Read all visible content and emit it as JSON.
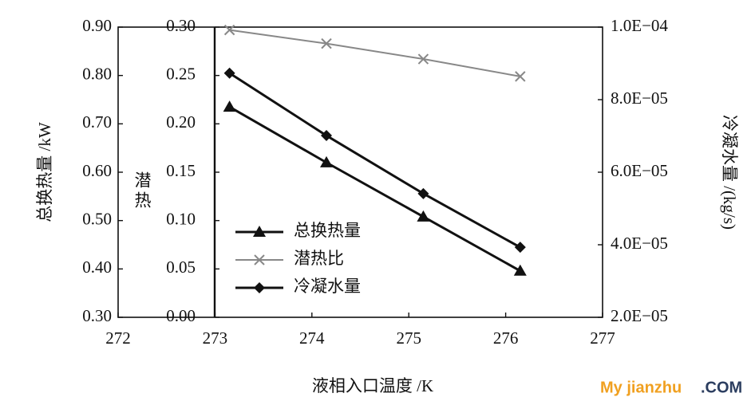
{
  "chart_data": {
    "type": "line",
    "x_label": "液相入口温度 /K",
    "y_label": "总换热量 /kW",
    "y2_label": "冷凝水量 /(kg/s)",
    "y3_label": "潜热",
    "x": [
      273.15,
      274.15,
      275.15,
      276.15
    ],
    "xlim": [
      272,
      277
    ],
    "xticks": [
      272,
      273,
      274,
      275,
      276,
      277
    ],
    "ylim": [
      0.3,
      0.9
    ],
    "yticks": [
      {
        "value": 0.3,
        "label": "0.30"
      },
      {
        "value": 0.4,
        "label": "0.40"
      },
      {
        "value": 0.5,
        "label": "0.50"
      },
      {
        "value": 0.6,
        "label": "0.60"
      },
      {
        "value": 0.7,
        "label": "0.70"
      },
      {
        "value": 0.8,
        "label": "0.80"
      },
      {
        "value": 0.9,
        "label": "0.90"
      }
    ],
    "y3lim": [
      0,
      0.3
    ],
    "y3ticks": [
      {
        "value": 0,
        "label": "0.00"
      },
      {
        "value": 0.05,
        "label": "0.05"
      },
      {
        "value": 0.1,
        "label": "0.10"
      },
      {
        "value": 0.15,
        "label": "0.15"
      },
      {
        "value": 0.2,
        "label": "0.20"
      },
      {
        "value": 0.25,
        "label": "0.25"
      },
      {
        "value": 0.3,
        "label": "0.30"
      }
    ],
    "y2lim": [
      2e-05,
      0.0001
    ],
    "y2ticks": [
      {
        "value": 2e-05,
        "label": "2.0E−05"
      },
      {
        "value": 4e-05,
        "label": "4.0E−05"
      },
      {
        "value": 6e-05,
        "label": "6.0E−05"
      },
      {
        "value": 8e-05,
        "label": "8.0E−05"
      },
      {
        "value": 0.0001,
        "label": "1.0E−04"
      }
    ],
    "series": [
      {
        "name": "总换热量",
        "color": "#111111",
        "marker": "triangle",
        "axis": "y",
        "values": [
          0.735,
          0.62,
          0.508,
          0.396
        ]
      },
      {
        "name": "潜热比",
        "color": "#888888",
        "marker": "x",
        "axis": "y3",
        "values": [
          0.297,
          0.283,
          0.267,
          0.249
        ]
      },
      {
        "name": "冷凝水量",
        "color": "#111111",
        "marker": "diamond",
        "axis": "y2",
        "values": [
          8.73e-05,
          7.01e-05,
          5.41e-05,
          3.93e-05
        ]
      }
    ]
  },
  "watermark": {
    "name": "My jianzhu",
    "suffix": ".COM"
  }
}
